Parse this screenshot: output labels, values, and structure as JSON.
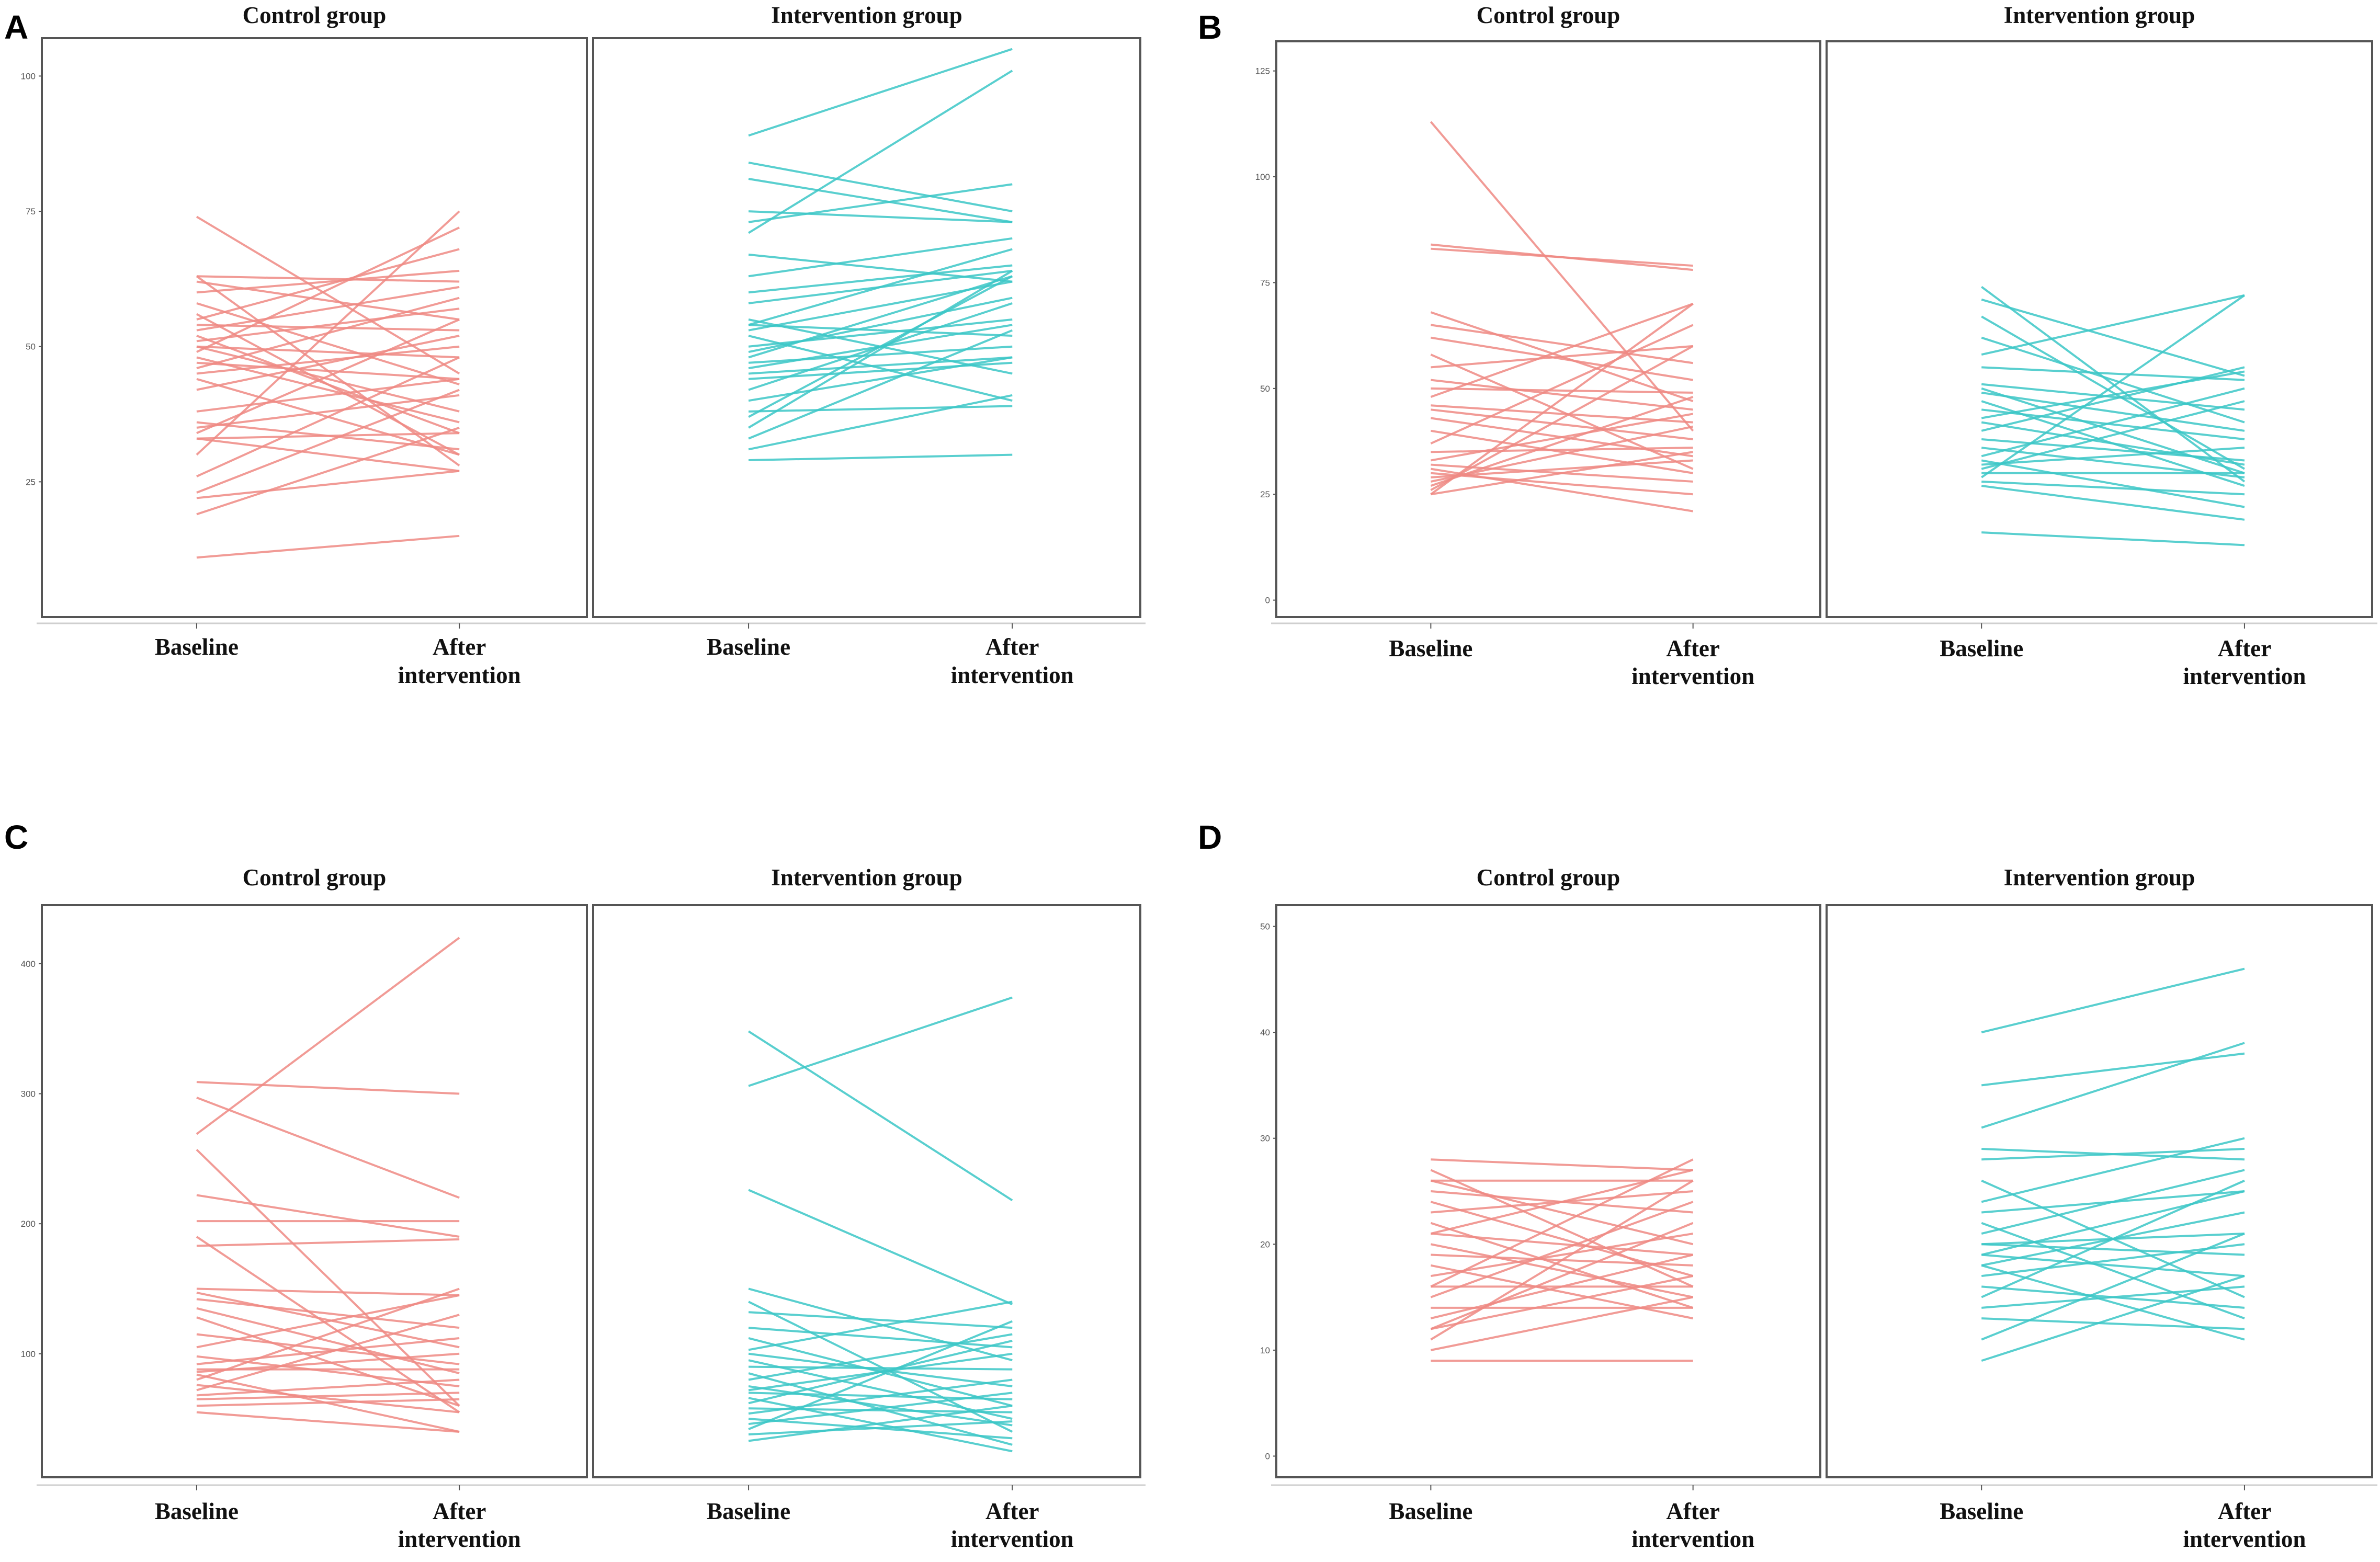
{
  "colors": {
    "control": "#ee8a84",
    "intervention": "#3cc7c7"
  },
  "chart_data": [
    {
      "type": "line",
      "panel": "A",
      "ylim": [
        0,
        107
      ],
      "yticks": [
        25,
        50,
        75,
        100
      ],
      "groups": [
        {
          "title": "Control group",
          "xlabels": [
            "Baseline",
            "After\nintervention"
          ],
          "pairs": [
            [
              74,
              45
            ],
            [
              63,
              62
            ],
            [
              63,
              28
            ],
            [
              62,
              55
            ],
            [
              60,
              64
            ],
            [
              58,
              43
            ],
            [
              56,
              30
            ],
            [
              55,
              68
            ],
            [
              54,
              53
            ],
            [
              53,
              61
            ],
            [
              52,
              34
            ],
            [
              51,
              57
            ],
            [
              50,
              38
            ],
            [
              50,
              48
            ],
            [
              49,
              72
            ],
            [
              48,
              36
            ],
            [
              47,
              44
            ],
            [
              46,
              59
            ],
            [
              45,
              50
            ],
            [
              44,
              30
            ],
            [
              42,
              52
            ],
            [
              38,
              44
            ],
            [
              36,
              31
            ],
            [
              35,
              41
            ],
            [
              34,
              55
            ],
            [
              33,
              27
            ],
            [
              33,
              34
            ],
            [
              30,
              75
            ],
            [
              26,
              48
            ],
            [
              23,
              42
            ],
            [
              22,
              27
            ],
            [
              19,
              35
            ],
            [
              11,
              15
            ]
          ]
        },
        {
          "title": "Intervention group",
          "xlabels": [
            "Baseline",
            "After\nintervention"
          ],
          "pairs": [
            [
              89,
              105
            ],
            [
              84,
              75
            ],
            [
              81,
              73
            ],
            [
              75,
              73
            ],
            [
              73,
              80
            ],
            [
              71,
              101
            ],
            [
              67,
              62
            ],
            [
              63,
              70
            ],
            [
              60,
              65
            ],
            [
              58,
              64
            ],
            [
              55,
              45
            ],
            [
              54,
              68
            ],
            [
              54,
              52
            ],
            [
              53,
              62
            ],
            [
              52,
              40
            ],
            [
              50,
              55
            ],
            [
              49,
              59
            ],
            [
              48,
              63
            ],
            [
              47,
              50
            ],
            [
              46,
              54
            ],
            [
              45,
              48
            ],
            [
              44,
              47
            ],
            [
              42,
              58
            ],
            [
              40,
              48
            ],
            [
              38,
              39
            ],
            [
              37,
              63
            ],
            [
              35,
              64
            ],
            [
              33,
              53
            ],
            [
              31,
              41
            ],
            [
              29,
              30
            ]
          ]
        }
      ]
    },
    {
      "type": "line",
      "panel": "B",
      "ylim": [
        -4,
        132
      ],
      "yticks": [
        0,
        25,
        50,
        75,
        100,
        125
      ],
      "groups": [
        {
          "title": "Control group",
          "xlabels": [
            "Baseline",
            "After\nintervention"
          ],
          "pairs": [
            [
              113,
              40
            ],
            [
              84,
              78
            ],
            [
              83,
              79
            ],
            [
              68,
              47
            ],
            [
              65,
              56
            ],
            [
              62,
              52
            ],
            [
              58,
              31
            ],
            [
              55,
              60
            ],
            [
              52,
              45
            ],
            [
              50,
              49
            ],
            [
              48,
              70
            ],
            [
              46,
              42
            ],
            [
              45,
              38
            ],
            [
              43,
              34
            ],
            [
              40,
              30
            ],
            [
              37,
              65
            ],
            [
              35,
              36
            ],
            [
              33,
              44
            ],
            [
              32,
              28
            ],
            [
              31,
              21
            ],
            [
              30,
              25
            ],
            [
              29,
              33
            ],
            [
              28,
              41
            ],
            [
              27,
              48
            ],
            [
              26,
              60
            ],
            [
              25,
              70
            ],
            [
              25,
              35
            ]
          ]
        },
        {
          "title": "Intervention group",
          "xlabels": [
            "Baseline",
            "After\nintervention"
          ],
          "pairs": [
            [
              74,
              28
            ],
            [
              71,
              53
            ],
            [
              67,
              31
            ],
            [
              62,
              42
            ],
            [
              58,
              72
            ],
            [
              55,
              52
            ],
            [
              51,
              45
            ],
            [
              50,
              30
            ],
            [
              49,
              40
            ],
            [
              47,
              27
            ],
            [
              45,
              38
            ],
            [
              43,
              54
            ],
            [
              42,
              32
            ],
            [
              40,
              55
            ],
            [
              38,
              33
            ],
            [
              36,
              29
            ],
            [
              34,
              50
            ],
            [
              33,
              22
            ],
            [
              32,
              36
            ],
            [
              31,
              47
            ],
            [
              30,
              30
            ],
            [
              29,
              72
            ],
            [
              28,
              25
            ],
            [
              27,
              19
            ],
            [
              16,
              13
            ]
          ]
        }
      ]
    },
    {
      "type": "line",
      "panel": "C",
      "ylim": [
        5,
        445
      ],
      "yticks": [
        100,
        200,
        300,
        400
      ],
      "groups": [
        {
          "title": "Control group",
          "xlabels": [
            "Baseline",
            "After\nintervention"
          ],
          "pairs": [
            [
              309,
              300
            ],
            [
              297,
              220
            ],
            [
              269,
              420
            ],
            [
              257,
              60
            ],
            [
              222,
              190
            ],
            [
              202,
              202
            ],
            [
              190,
              55
            ],
            [
              183,
              188
            ],
            [
              150,
              145
            ],
            [
              147,
              105
            ],
            [
              142,
              120
            ],
            [
              135,
              85
            ],
            [
              128,
              60
            ],
            [
              115,
              92
            ],
            [
              105,
              145
            ],
            [
              98,
              75
            ],
            [
              92,
              112
            ],
            [
              88,
              88
            ],
            [
              86,
              100
            ],
            [
              84,
              40
            ],
            [
              80,
              150
            ],
            [
              76,
              55
            ],
            [
              72,
              130
            ],
            [
              68,
              80
            ],
            [
              65,
              70
            ],
            [
              60,
              65
            ],
            [
              55,
              40
            ]
          ]
        },
        {
          "title": "Intervention group",
          "xlabels": [
            "Baseline",
            "After\nintervention"
          ],
          "pairs": [
            [
              348,
              218
            ],
            [
              306,
              374
            ],
            [
              226,
              138
            ],
            [
              150,
              95
            ],
            [
              140,
              40
            ],
            [
              132,
              120
            ],
            [
              120,
              105
            ],
            [
              112,
              60
            ],
            [
              103,
              140
            ],
            [
              100,
              75
            ],
            [
              95,
              50
            ],
            [
              90,
              88
            ],
            [
              85,
              30
            ],
            [
              80,
              115
            ],
            [
              75,
              45
            ],
            [
              72,
              100
            ],
            [
              70,
              65
            ],
            [
              66,
              25
            ],
            [
              62,
              110
            ],
            [
              58,
              55
            ],
            [
              54,
              80
            ],
            [
              50,
              35
            ],
            [
              46,
              70
            ],
            [
              42,
              125
            ],
            [
              38,
              48
            ],
            [
              33,
              60
            ]
          ]
        }
      ]
    },
    {
      "type": "line",
      "panel": "D",
      "ylim": [
        -2,
        52
      ],
      "yticks": [
        0,
        10,
        20,
        30,
        40,
        50
      ],
      "groups": [
        {
          "title": "Control group",
          "xlabels": [
            "Baseline",
            "After\nintervention"
          ],
          "pairs": [
            [
              28,
              27
            ],
            [
              27,
              16
            ],
            [
              26,
              26
            ],
            [
              26,
              20
            ],
            [
              25,
              23
            ],
            [
              24,
              17
            ],
            [
              23,
              25
            ],
            [
              22,
              14
            ],
            [
              21,
              19
            ],
            [
              21,
              27
            ],
            [
              20,
              15
            ],
            [
              19,
              18
            ],
            [
              18,
              13
            ],
            [
              17,
              21
            ],
            [
              16,
              28
            ],
            [
              16,
              16
            ],
            [
              15,
              24
            ],
            [
              14,
              14
            ],
            [
              13,
              19
            ],
            [
              12,
              22
            ],
            [
              12,
              17
            ],
            [
              11,
              26
            ],
            [
              10,
              15
            ],
            [
              9,
              9
            ]
          ]
        },
        {
          "title": "Intervention group",
          "xlabels": [
            "Baseline",
            "After\nintervention"
          ],
          "pairs": [
            [
              40,
              46
            ],
            [
              35,
              38
            ],
            [
              31,
              39
            ],
            [
              29,
              28
            ],
            [
              28,
              29
            ],
            [
              26,
              15
            ],
            [
              24,
              30
            ],
            [
              23,
              25
            ],
            [
              22,
              13
            ],
            [
              21,
              27
            ],
            [
              20,
              19
            ],
            [
              20,
              21
            ],
            [
              19,
              25
            ],
            [
              19,
              17
            ],
            [
              18,
              11
            ],
            [
              18,
              23
            ],
            [
              17,
              20
            ],
            [
              16,
              14
            ],
            [
              15,
              26
            ],
            [
              14,
              16
            ],
            [
              13,
              12
            ],
            [
              11,
              21
            ],
            [
              9,
              17
            ]
          ]
        }
      ]
    }
  ]
}
